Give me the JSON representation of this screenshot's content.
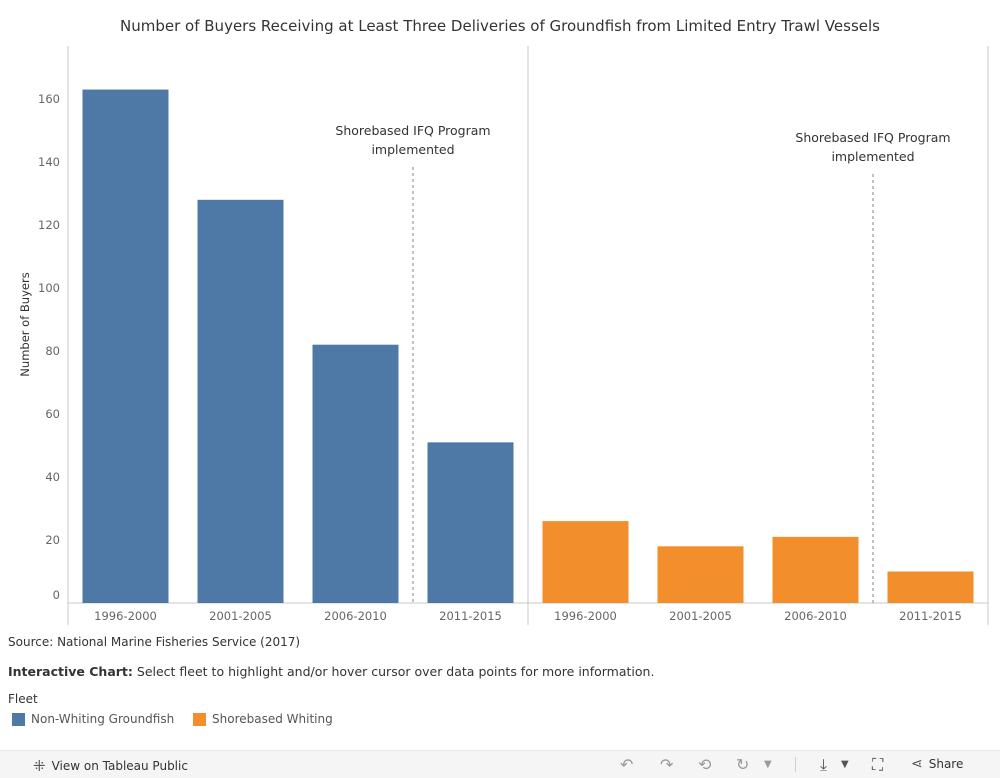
{
  "title": "Number of Buyers Receiving at Least Three Deliveries of Groundfish from Limited Entry Trawl Vessels",
  "source": "Source: National Marine Fisheries Service (2017)",
  "interactive": {
    "bold": "Interactive Chart:",
    "text": " Select fleet to highlight and/or hover cursor over data points for more information."
  },
  "legend": {
    "title": "Fleet",
    "items": [
      {
        "label": "Non-Whiting Groundfish",
        "color": "#4e79a7"
      },
      {
        "label": "Shorebased Whiting",
        "color": "#f28e2b"
      }
    ]
  },
  "footer": {
    "view_label": "View on Tableau Public",
    "share_label": "Share",
    "icons": [
      "tableau-logo-icon",
      "undo-icon",
      "redo-icon",
      "revert-icon",
      "refresh-icon",
      "pause-icon",
      "download-icon",
      "fullscreen-icon",
      "share-icon"
    ]
  },
  "chart_data": {
    "type": "bar",
    "ylabel": "Number of Buyers",
    "ylim": [
      0,
      175
    ],
    "yticks": [
      0,
      20,
      40,
      60,
      80,
      100,
      120,
      140,
      160
    ],
    "grid": false,
    "panels": [
      {
        "fleet": "Non-Whiting Groundfish",
        "color": "#4e79a7",
        "categories": [
          "1996-2000",
          "2001-2005",
          "2006-2010",
          "2011-2015"
        ],
        "values": [
          163,
          128,
          82,
          51
        ]
      },
      {
        "fleet": "Shorebased Whiting",
        "color": "#f28e2b",
        "categories": [
          "1996-2000",
          "2001-2005",
          "2006-2010",
          "2011-2015"
        ],
        "values": [
          26,
          18,
          21,
          10
        ]
      }
    ],
    "annotations": [
      {
        "text_line1": "Shorebased IFQ Program",
        "text_line2": "implemented",
        "panel": 0,
        "between": [
          "2006-2010",
          "2011-2015"
        ]
      },
      {
        "text_line1": "Shorebased IFQ Program",
        "text_line2": "implemented",
        "panel": 1,
        "between": [
          "2006-2010",
          "2011-2015"
        ]
      }
    ]
  }
}
